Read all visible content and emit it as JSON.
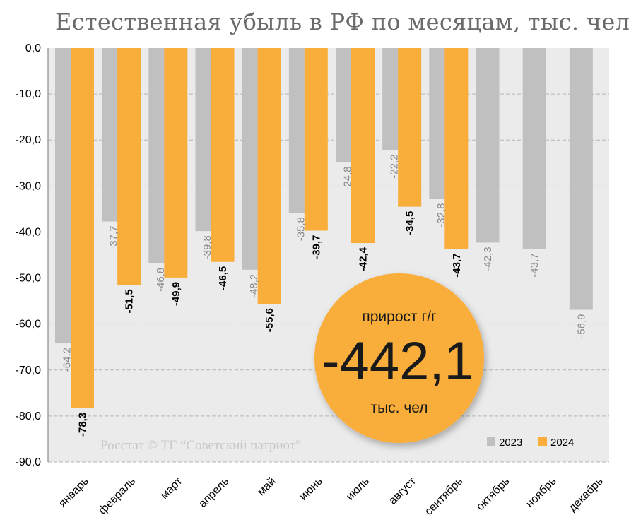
{
  "title": "Естественная убыль в РФ по месяцам, тыс. чел",
  "watermark": "Росстат © ТГ “Советский патриот”",
  "badge": {
    "top": "прирост г/г",
    "value": "-442,1",
    "bottom": "тыс. чел"
  },
  "colors": {
    "series_2023": "#c0c0c0",
    "series_2024": "#f9ae3b",
    "plot_bg": "#ebebeb",
    "grid": "#b5b5b5",
    "title": "#6a6a6a"
  },
  "chart_data": {
    "type": "bar",
    "title": "Естественная убыль в РФ по месяцам, тыс. чел",
    "categories": [
      "январь",
      "февраль",
      "март",
      "апрель",
      "май",
      "июнь",
      "июль",
      "август",
      "сентябрь",
      "октябрь",
      "ноябрь",
      "декабрь"
    ],
    "series": [
      {
        "name": "2023",
        "color": "#c0c0c0",
        "values": [
          -64.2,
          -37.7,
          -46.8,
          -39.8,
          -48.2,
          -35.8,
          -24.8,
          -22.2,
          -32.8,
          -42.3,
          -43.7,
          -56.9
        ],
        "labels": [
          "-64,2",
          "-37,7",
          "-46,8",
          "-39,8",
          "-48,2",
          "-35,8",
          "-24,8",
          "-22,2",
          "-32,8",
          "-42,3",
          "-43,7",
          "-56,9"
        ]
      },
      {
        "name": "2024",
        "color": "#f9ae3b",
        "values": [
          -78.3,
          -51.5,
          -49.9,
          -46.5,
          -55.6,
          -39.7,
          -42.4,
          -34.5,
          -43.7,
          null,
          null,
          null
        ],
        "labels": [
          "-78,3",
          "-51,5",
          "-49,9",
          "-46,5",
          "-55,6",
          "-39,7",
          "-42,4",
          "-34,5",
          "-43,7",
          "",
          "",
          ""
        ]
      }
    ],
    "yticks": [
      "0,0",
      "-10,0",
      "-20,0",
      "-30,0",
      "-40,0",
      "-50,0",
      "-60,0",
      "-70,0",
      "-80,0",
      "-90,0"
    ],
    "ylim": [
      -90,
      0
    ],
    "grid": true,
    "legend": "bottom-right inside plot"
  }
}
